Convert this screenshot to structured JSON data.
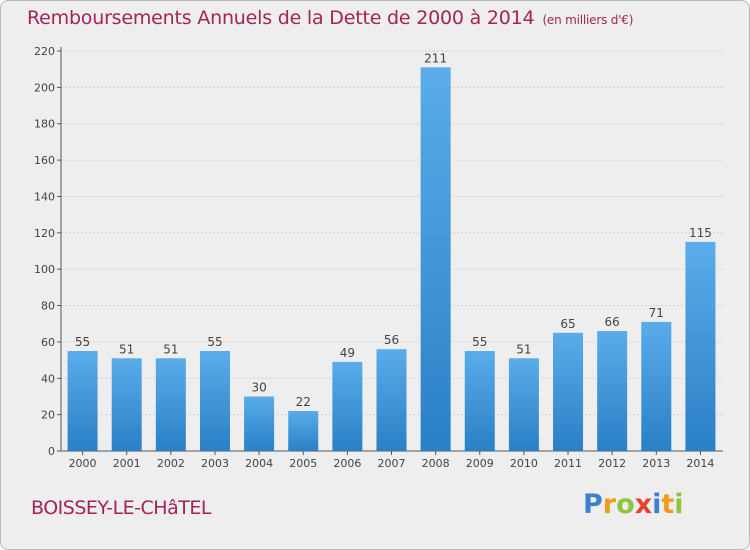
{
  "chart_data": {
    "type": "bar",
    "title": "Remboursements Annuels de la Dette de 2000 à 2014",
    "subtitle": "(en milliers d'€)",
    "categories": [
      "2000",
      "2001",
      "2002",
      "2003",
      "2004",
      "2005",
      "2006",
      "2007",
      "2008",
      "2009",
      "2010",
      "2011",
      "2012",
      "2013",
      "2014"
    ],
    "values": [
      55,
      51,
      51,
      55,
      30,
      22,
      49,
      56,
      211,
      55,
      51,
      65,
      66,
      71,
      115
    ],
    "ylim": [
      0,
      220
    ],
    "yticks": [
      0,
      20,
      40,
      60,
      80,
      100,
      120,
      140,
      160,
      180,
      200,
      220
    ],
    "grid": true,
    "bar_color": "#3d95dc"
  },
  "footer": {
    "commune": "BOISSEY-LE-CHâTEL",
    "logo_letters": [
      "P",
      "r",
      "o",
      "x",
      "i",
      "t",
      "i"
    ]
  }
}
